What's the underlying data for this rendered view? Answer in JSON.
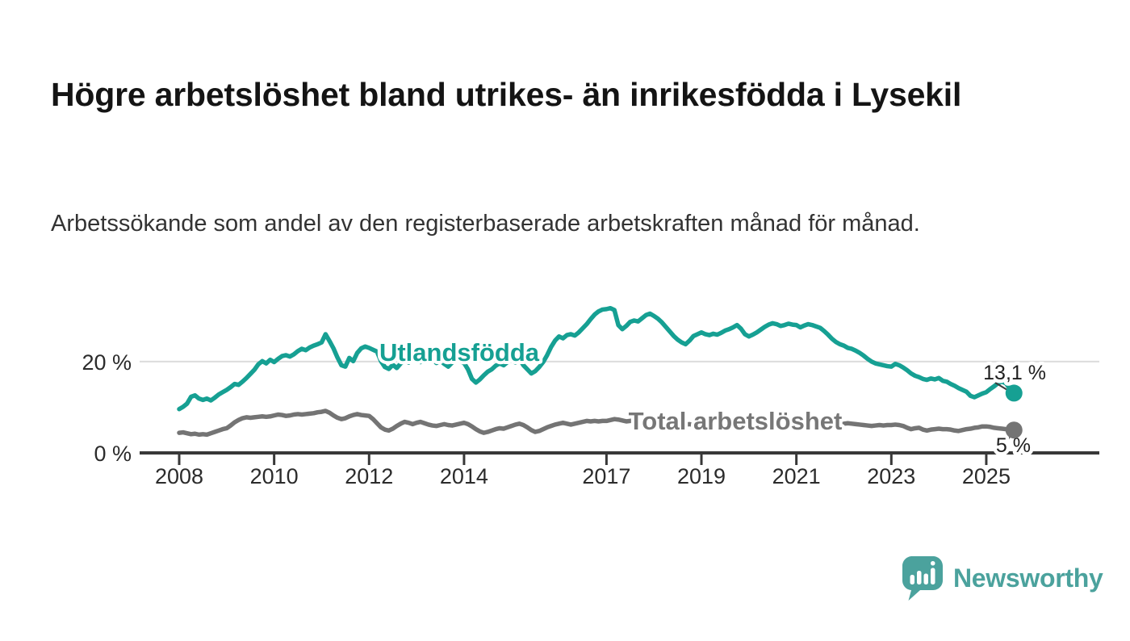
{
  "chart_data": {
    "type": "line",
    "title": "Högre arbetslöshet bland utrikes- än inrikesfödda i Lysekil",
    "subtitle": "Arbetssökande som andel av den registerbaserade arbetskraften månad för månad.",
    "unit": "%",
    "x_start_year": 2008,
    "points_per_year": 12,
    "x_ticks": [
      {
        "year": 2008,
        "label": "2008"
      },
      {
        "year": 2010,
        "label": "2010"
      },
      {
        "year": 2012,
        "label": "2012"
      },
      {
        "year": 2014,
        "label": "2014"
      },
      {
        "year": 2017,
        "label": "2017"
      },
      {
        "year": 2019,
        "label": "2019"
      },
      {
        "year": 2021,
        "label": "2021"
      },
      {
        "year": 2023,
        "label": "2023"
      },
      {
        "year": 2025,
        "label": "2025"
      }
    ],
    "y_ticks": [
      {
        "value": 0,
        "label": "0 %"
      },
      {
        "value": 20,
        "label": "20 %"
      }
    ],
    "ylim": [
      0,
      34
    ],
    "grid": "horizontal line at 20 % only",
    "legend": "inline labels on lines",
    "series": [
      {
        "name": "Utlandsfödda",
        "color": "#16a093",
        "end_label": "13,1 %",
        "end_value": 13.1,
        "values": [
          9.6,
          10.1,
          10.8,
          12.3,
          12.6,
          11.9,
          11.6,
          11.9,
          11.5,
          12.1,
          12.8,
          13.3,
          13.8,
          14.4,
          15.1,
          14.9,
          15.6,
          16.4,
          17.3,
          18.2,
          19.4,
          20.1,
          19.6,
          20.4,
          19.9,
          20.6,
          21.2,
          21.4,
          21.1,
          21.6,
          22.3,
          22.8,
          22.5,
          23.1,
          23.5,
          23.8,
          24.2,
          26.0,
          24.5,
          22.9,
          20.9,
          19.2,
          18.9,
          20.8,
          20.1,
          21.9,
          22.9,
          23.3,
          23.0,
          22.6,
          22.2,
          20.1,
          18.8,
          18.4,
          19.3,
          18.6,
          19.6,
          20.3,
          19.8,
          20.9,
          20.4,
          19.9,
          20.6,
          21.2,
          20.7,
          19.7,
          20.2,
          19.5,
          18.9,
          19.8,
          20.5,
          20.1,
          19.7,
          18.3,
          16.2,
          15.4,
          16.1,
          17.0,
          17.8,
          18.3,
          19.1,
          19.6,
          19.2,
          19.9,
          20.3,
          19.8,
          20.6,
          19.2,
          18.3,
          17.4,
          17.9,
          18.8,
          19.9,
          21.4,
          23.2,
          24.6,
          25.5,
          25.1,
          25.8,
          26.0,
          25.7,
          26.4,
          27.3,
          28.2,
          29.3,
          30.3,
          31.0,
          31.4,
          31.5,
          31.7,
          31.3,
          28.0,
          27.1,
          27.8,
          28.7,
          29.0,
          28.8,
          29.5,
          30.2,
          30.5,
          30.0,
          29.4,
          28.6,
          27.6,
          26.6,
          25.6,
          24.8,
          24.2,
          23.8,
          24.6,
          25.6,
          26.0,
          26.4,
          26.0,
          25.8,
          26.1,
          25.9,
          26.3,
          26.8,
          27.1,
          27.5,
          28.0,
          27.2,
          26.0,
          25.5,
          25.9,
          26.4,
          27.0,
          27.6,
          28.1,
          28.4,
          28.2,
          27.8,
          28.0,
          28.3,
          28.1,
          28.0,
          27.5,
          27.9,
          28.2,
          28.0,
          27.7,
          27.4,
          26.7,
          25.9,
          25.0,
          24.3,
          23.8,
          23.5,
          23.0,
          22.8,
          22.4,
          21.9,
          21.3,
          20.6,
          20.0,
          19.6,
          19.4,
          19.2,
          19.0,
          18.9,
          19.5,
          19.2,
          18.7,
          18.1,
          17.4,
          16.9,
          16.6,
          16.2,
          16.0,
          16.3,
          16.1,
          16.4,
          15.8,
          15.6,
          15.1,
          14.7,
          14.2,
          13.8,
          13.4,
          12.5,
          12.2,
          12.6,
          13.0,
          13.3,
          14.0,
          14.6,
          15.3,
          15.6,
          15.2,
          14.0,
          13.1
        ]
      },
      {
        "name": "Total arbetslöshet",
        "color": "#747474",
        "end_label": "5 %",
        "end_value": 5.0,
        "values": [
          4.4,
          4.5,
          4.3,
          4.1,
          4.2,
          4.0,
          4.1,
          4.0,
          4.3,
          4.6,
          4.9,
          5.2,
          5.4,
          6.0,
          6.7,
          7.2,
          7.6,
          7.8,
          7.7,
          7.8,
          7.9,
          8.0,
          7.9,
          8.0,
          8.2,
          8.4,
          8.3,
          8.1,
          8.2,
          8.4,
          8.5,
          8.4,
          8.5,
          8.6,
          8.7,
          8.9,
          9.0,
          9.2,
          8.8,
          8.2,
          7.7,
          7.4,
          7.6,
          8.0,
          8.3,
          8.5,
          8.3,
          8.2,
          8.1,
          7.4,
          6.5,
          5.6,
          5.1,
          4.9,
          5.3,
          5.9,
          6.4,
          6.8,
          6.6,
          6.3,
          6.6,
          6.8,
          6.5,
          6.2,
          6.0,
          5.9,
          6.1,
          6.3,
          6.1,
          6.0,
          6.2,
          6.4,
          6.6,
          6.3,
          5.8,
          5.2,
          4.7,
          4.4,
          4.6,
          4.9,
          5.2,
          5.4,
          5.3,
          5.6,
          5.9,
          6.2,
          6.4,
          6.1,
          5.6,
          5.0,
          4.6,
          4.8,
          5.2,
          5.6,
          5.9,
          6.2,
          6.4,
          6.6,
          6.4,
          6.2,
          6.4,
          6.6,
          6.8,
          7.0,
          6.9,
          7.0,
          6.9,
          7.0,
          7.0,
          7.2,
          7.4,
          7.3,
          7.1,
          6.9,
          7.0,
          7.2,
          7.4,
          7.5,
          7.4,
          7.2,
          7.0,
          6.8,
          6.6,
          6.4,
          6.2,
          6.0,
          5.9,
          6.0,
          6.2,
          6.3,
          6.1,
          6.0,
          5.9,
          5.8,
          5.9,
          6.0,
          6.1,
          6.2,
          6.3,
          6.4,
          6.3,
          6.2,
          6.1,
          6.2,
          6.3,
          6.5,
          6.8,
          7.1,
          7.2,
          7.1,
          7.0,
          6.9,
          6.8,
          6.7,
          6.6,
          6.7,
          6.8,
          6.9,
          6.8,
          6.7,
          6.6,
          6.5,
          6.4,
          6.3,
          6.2,
          6.1,
          6.2,
          6.3,
          6.4,
          6.5,
          6.4,
          6.3,
          6.2,
          6.1,
          6.0,
          5.9,
          6.0,
          6.1,
          6.0,
          6.1,
          6.1,
          6.2,
          6.1,
          5.9,
          5.5,
          5.2,
          5.4,
          5.5,
          5.1,
          4.9,
          5.1,
          5.2,
          5.3,
          5.2,
          5.2,
          5.1,
          4.9,
          4.8,
          5.0,
          5.2,
          5.3,
          5.5,
          5.6,
          5.8,
          5.8,
          5.7,
          5.5,
          5.4,
          5.3,
          5.2,
          5.1,
          5.0
        ]
      }
    ]
  },
  "footer": {
    "brand": "Newsworthy"
  },
  "colors": {
    "line_teal": "#16a093",
    "line_gray": "#747474",
    "grid": "#dcdcdc",
    "axis": "#383838",
    "tick_text": "#2b2b2b",
    "title_text": "#141414",
    "subtitle_text": "#333333",
    "logo_teal": "#4ba29d"
  }
}
